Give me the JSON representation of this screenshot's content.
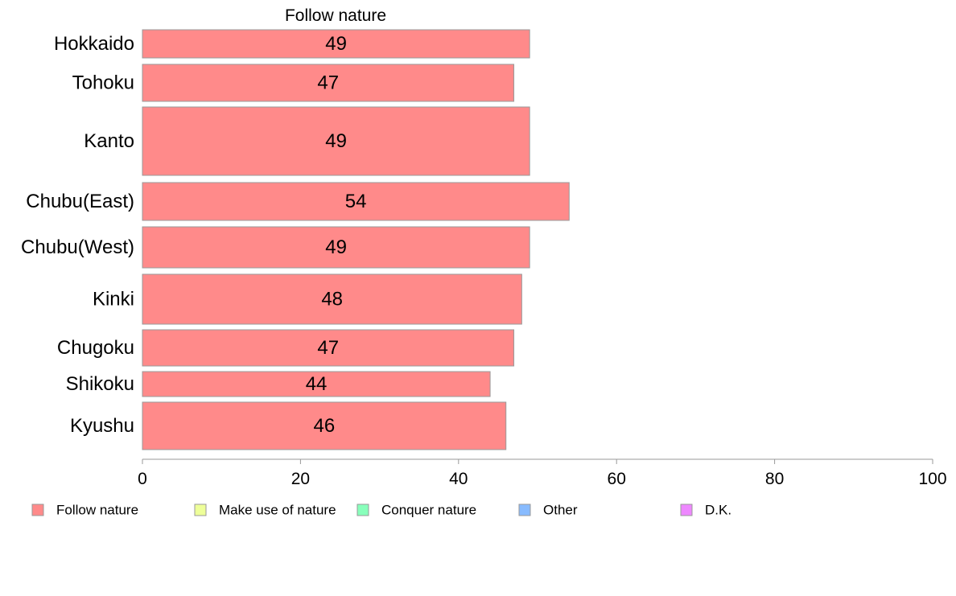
{
  "chart_data": {
    "type": "bar",
    "orientation": "horizontal",
    "title": "Follow nature",
    "categories": [
      "Hokkaido",
      "Tohoku",
      "Kanto",
      "Chubu(East)",
      "Chubu(West)",
      "Kinki",
      "Chugoku",
      "Shikoku",
      "Kyushu"
    ],
    "series": [
      {
        "name": "Follow nature",
        "values": [
          49,
          47,
          49,
          54,
          49,
          48,
          47,
          44,
          46
        ],
        "color": "#ff8a8a"
      }
    ],
    "xlim": [
      0,
      100
    ],
    "xticks": [
      0,
      20,
      40,
      60,
      80,
      100
    ],
    "grid": false,
    "legend": {
      "placement": "bottom",
      "entries": [
        {
          "label": "Follow nature",
          "color": "#ff8a8a"
        },
        {
          "label": "Make use of nature",
          "color": "#eeff99"
        },
        {
          "label": "Conquer nature",
          "color": "#88ffbb"
        },
        {
          "label": "Other",
          "color": "#88bbff"
        },
        {
          "label": "D.K.",
          "color": "#ee88ff"
        }
      ]
    }
  }
}
